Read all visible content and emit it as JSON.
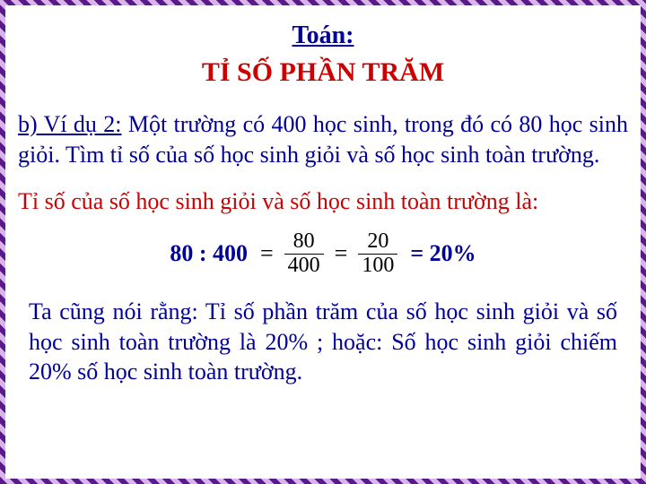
{
  "colors": {
    "blue_text": "#000099",
    "red_text": "#cc0000",
    "black": "#000000",
    "background": "#ffffff",
    "border_dark": "#5b1a8b",
    "border_light": "#d8b4e8"
  },
  "typography": {
    "font_family": "Times New Roman, serif",
    "subject_fontsize": 28,
    "title_fontsize": 30,
    "body_fontsize": 26,
    "fraction_fontsize": 24
  },
  "subject": "Toán:",
  "title": "TỈ SỐ PHẦN TRĂM",
  "example_label": "b) Ví dụ 2:",
  "problem_text": " Một trường có 400 học sinh, trong đó có 80 học sinh giỏi. Tìm tỉ số của số học sinh giỏi và số học sinh toàn trường.",
  "statement": "Tỉ số của số học sinh giỏi và số học sinh toàn trường là:",
  "equation": {
    "prefix": "80 : 400",
    "eq1": "=",
    "frac1_num": "80",
    "frac1_den": "400",
    "eq2": "=",
    "frac2_num": "20",
    "frac2_den": "100",
    "result": "= 20%"
  },
  "conclusion": "Ta cũng nói rằng: Tỉ số phần trăm của số học sinh giỏi và số học sinh toàn trường là 20% ; hoặc: Số học sinh giỏi chiếm 20% số học sinh toàn trường."
}
